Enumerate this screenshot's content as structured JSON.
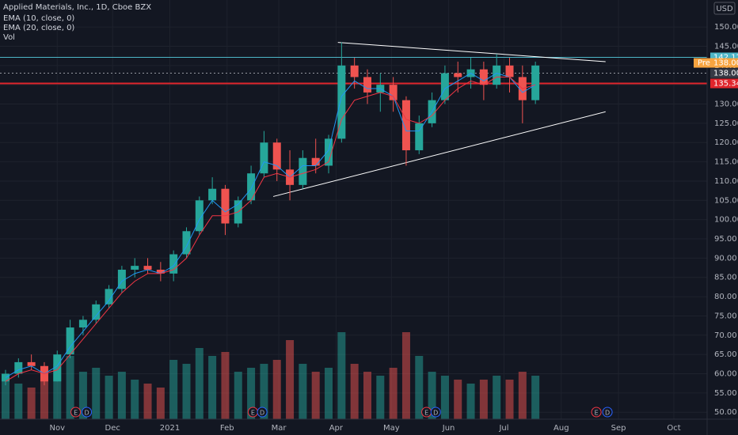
{
  "chart_data": {
    "type": "candlestick",
    "title": "Applied Materials, Inc., 1D, Cboe BZX",
    "indicators": [
      "EMA (10, close, 0)",
      "EMA (20, close, 0)",
      "Vol"
    ],
    "currency": "USD",
    "up_color": "#26a69a",
    "down_color": "#ef5350",
    "grid": true,
    "xlim": [
      0,
      383
    ],
    "xticks": [
      {
        "value": 31,
        "label": "Nov"
      },
      {
        "value": 61,
        "label": "Dec"
      },
      {
        "value": 92,
        "label": "2021"
      },
      {
        "value": 123,
        "label": "Feb"
      },
      {
        "value": 151,
        "label": "Mar"
      },
      {
        "value": 182,
        "label": "Apr"
      },
      {
        "value": 212,
        "label": "May"
      },
      {
        "value": 243,
        "label": "Jun"
      },
      {
        "value": 273,
        "label": "Jul"
      },
      {
        "value": 304,
        "label": "Aug"
      },
      {
        "value": 335,
        "label": "Sep"
      },
      {
        "value": 365,
        "label": "Oct"
      }
    ],
    "ylim": [
      48.2,
      157
    ],
    "yticks": [
      {
        "value": 50,
        "label": "50.00"
      },
      {
        "value": 55,
        "label": "55.00"
      },
      {
        "value": 60,
        "label": "60.00"
      },
      {
        "value": 65,
        "label": "65.00"
      },
      {
        "value": 70,
        "label": "70.00"
      },
      {
        "value": 75,
        "label": "75.00"
      },
      {
        "value": 80,
        "label": "80.00"
      },
      {
        "value": 85,
        "label": "85.00"
      },
      {
        "value": 90,
        "label": "90.00"
      },
      {
        "value": 95,
        "label": "95.00"
      },
      {
        "value": 100,
        "label": "100.00"
      },
      {
        "value": 105,
        "label": "105.00"
      },
      {
        "value": 110,
        "label": "110.00"
      },
      {
        "value": 115,
        "label": "115.00"
      },
      {
        "value": 120,
        "label": "120.00"
      },
      {
        "value": 125,
        "label": "125.00"
      },
      {
        "value": 130,
        "label": "130.00"
      },
      {
        "value": 135,
        "label": "135.00"
      },
      {
        "value": 140,
        "label": "140.00"
      },
      {
        "value": 145,
        "label": "145.00"
      },
      {
        "value": 150,
        "label": "150.00"
      }
    ],
    "vlim": [
      0,
      30
    ],
    "x": [
      3,
      10,
      17,
      24,
      31,
      38,
      45,
      52,
      59,
      66,
      73,
      80,
      87,
      94,
      101,
      108,
      115,
      122,
      129,
      136,
      143,
      150,
      157,
      164,
      171,
      178,
      185,
      192,
      199,
      206,
      213,
      220,
      227,
      234,
      241,
      248,
      255,
      262,
      269,
      276,
      283,
      290
    ],
    "open": [
      58,
      60,
      63,
      62,
      58,
      65,
      72,
      74,
      78,
      82,
      87,
      88,
      87,
      86,
      91,
      97,
      105,
      108,
      99,
      105,
      112,
      120,
      113,
      109,
      116,
      114,
      121,
      140,
      137,
      133,
      135,
      131,
      118,
      125,
      131,
      138,
      137,
      139,
      135,
      140,
      137,
      131
    ],
    "high": [
      61,
      64,
      65,
      63,
      66,
      74,
      75,
      79,
      83,
      88,
      90,
      90,
      89,
      92,
      98,
      106,
      111,
      109,
      106,
      114,
      123,
      121,
      118,
      118,
      121,
      122,
      146,
      142,
      139,
      138,
      137,
      132,
      127,
      133,
      140,
      141,
      142,
      141,
      143,
      142,
      140,
      141
    ],
    "low": [
      57,
      59,
      61,
      57,
      58,
      64,
      70,
      73,
      77,
      81,
      85,
      86,
      84,
      84,
      90,
      96,
      104,
      96,
      98,
      104,
      111,
      110,
      105,
      108,
      112,
      112,
      120,
      134,
      130,
      128,
      128,
      114,
      117,
      124,
      130,
      133,
      134,
      131,
      134,
      133,
      125,
      130
    ],
    "close": [
      60,
      63,
      62,
      58,
      65,
      72,
      74,
      78,
      82,
      87,
      88,
      87,
      86,
      91,
      97,
      105,
      108,
      99,
      105,
      112,
      120,
      113,
      109,
      116,
      114,
      121,
      140,
      137,
      133,
      135,
      131,
      118,
      125,
      131,
      138,
      137,
      139,
      135,
      140,
      137,
      131,
      140
    ],
    "volume": [
      10,
      9,
      8,
      11,
      14,
      16,
      12,
      13,
      11,
      12,
      10,
      9,
      8,
      15,
      14,
      18,
      16,
      17,
      12,
      13,
      14,
      15,
      20,
      14,
      12,
      13,
      22,
      14,
      12,
      11,
      13,
      22,
      16,
      12,
      11,
      10,
      9,
      10,
      11,
      10,
      12,
      11
    ],
    "series": [
      {
        "name": "EMA (10, close, 0)",
        "color": "#2196f3",
        "values": [
          59,
          61,
          62,
          60,
          62,
          67,
          71,
          75,
          79,
          84,
          86,
          87,
          86,
          88,
          93,
          100,
          105,
          102,
          104,
          108,
          115,
          114,
          111,
          114,
          114,
          118,
          132,
          136,
          134,
          134,
          132,
          123,
          123,
          128,
          134,
          136,
          138,
          136,
          138,
          137,
          133,
          135
        ]
      },
      {
        "name": "EMA (20, close, 0)",
        "color": "#f23645",
        "values": [
          58,
          60,
          61,
          60,
          61,
          65,
          69,
          73,
          77,
          81,
          84,
          86,
          86,
          87,
          90,
          96,
          101,
          101,
          102,
          105,
          111,
          112,
          111,
          112,
          113,
          115,
          126,
          131,
          132,
          133,
          132,
          126,
          125,
          127,
          131,
          134,
          136,
          135,
          137,
          137,
          134,
          135
        ]
      }
    ],
    "trendlines": [
      {
        "color": "#ffffff",
        "x": [
          183,
          328
        ],
        "y": [
          146,
          141
        ]
      },
      {
        "color": "#ffffff",
        "x": [
          148,
          328
        ],
        "y": [
          106,
          128
        ]
      }
    ],
    "levels": [
      {
        "color": "#4db6c8",
        "price": 142.12
      },
      {
        "color": "#9598a1",
        "price": {
          "value": 138,
          "label": "138.00"
        }
      },
      {
        "color": "#e0252c",
        "price": 135.34
      }
    ],
    "premarket": {
      "tag": "Pre",
      "price": {
        "value": 138,
        "label": "138.00"
      }
    },
    "events": [
      {
        "x": 41,
        "label": "E"
      },
      {
        "x": 47,
        "label": "D"
      },
      {
        "x": 137,
        "label": "E"
      },
      {
        "x": 142,
        "label": "D"
      },
      {
        "x": 231,
        "label": "E"
      },
      {
        "x": 236,
        "label": "D"
      },
      {
        "x": 323,
        "label": "E"
      },
      {
        "x": 329,
        "label": "D"
      }
    ]
  }
}
